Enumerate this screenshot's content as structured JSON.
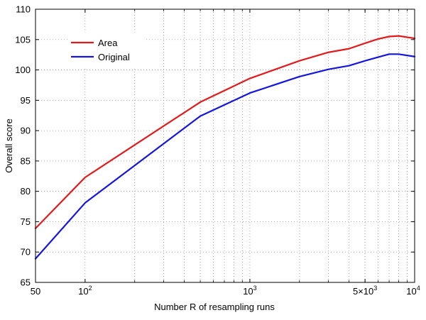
{
  "chart_data": {
    "type": "line",
    "title": "",
    "xlabel": "Number R of resampling runs",
    "ylabel": "Overall score",
    "xscale": "log",
    "xlim": [
      50,
      10000
    ],
    "ylim": [
      65,
      110
    ],
    "grid": true,
    "legend_position": "top-left",
    "x_ticks": [
      {
        "value": 50,
        "label": "50",
        "superscript": ""
      },
      {
        "value": 100,
        "label": "10",
        "superscript": "2"
      },
      {
        "value": 1000,
        "label": "10",
        "superscript": "3"
      },
      {
        "value": 5000,
        "label": "5×10",
        "superscript": "3"
      },
      {
        "value": 10000,
        "label": "10",
        "superscript": "4"
      }
    ],
    "y_ticks": [
      65,
      70,
      75,
      80,
      85,
      90,
      95,
      100,
      105,
      110
    ],
    "x_minor_grid": [
      200,
      300,
      400,
      500,
      600,
      700,
      800,
      900,
      2000,
      3000,
      4000,
      5000,
      6000,
      7000,
      8000,
      9000
    ],
    "series": [
      {
        "name": "Area",
        "color": "#e31a1c",
        "x": [
          50,
          100,
          500,
          1000,
          2000,
          3000,
          4000,
          5000,
          6000,
          7000,
          8000,
          10000
        ],
        "y": [
          73.9,
          82.3,
          94.7,
          98.6,
          101.5,
          102.9,
          103.5,
          104.4,
          105.1,
          105.5,
          105.6,
          105.2
        ]
      },
      {
        "name": "Original",
        "color": "#1515e0",
        "x": [
          50,
          100,
          500,
          1000,
          2000,
          3000,
          4000,
          5000,
          6000,
          7000,
          8000,
          10000
        ],
        "y": [
          68.9,
          78.1,
          92.4,
          96.2,
          98.9,
          100.1,
          100.7,
          101.5,
          102.1,
          102.6,
          102.6,
          102.2
        ]
      }
    ]
  }
}
